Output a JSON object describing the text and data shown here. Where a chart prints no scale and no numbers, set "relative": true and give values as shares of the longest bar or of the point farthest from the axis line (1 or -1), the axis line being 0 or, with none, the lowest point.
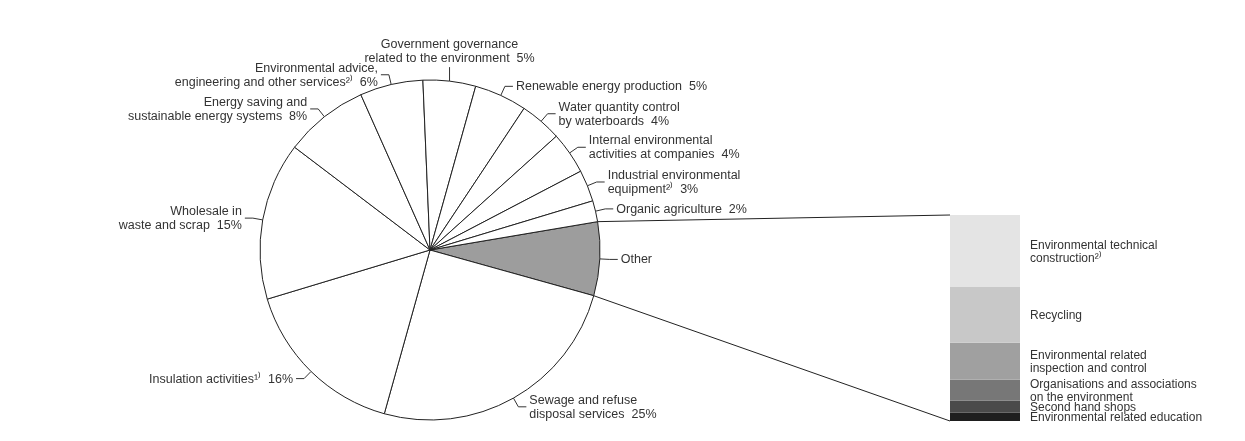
{
  "chart_data": [
    {
      "type": "pie",
      "categories": [
        "Other",
        "Sewage and refuse\ndisposal services",
        "Insulation activities¹⁾",
        "Wholesale in\nwaste and scrap",
        "Energy saving and\nsustainable energy systems",
        "Environmental advice,\nengineering and other services²⁾",
        "Government governance\nrelated to the environment",
        "Renewable energy production",
        "Water quantity control\nby waterboards",
        "Internal environmental\nactivities at companies",
        "Industrial environmental\nequipment²⁾",
        "Organic agriculture"
      ],
      "values": [
        7,
        25,
        16,
        15,
        8,
        6,
        5,
        5,
        4,
        4,
        3,
        2
      ],
      "value_labels": [
        null,
        "25%",
        "16%",
        "15%",
        "8%",
        "6%",
        "5%",
        "5%",
        "4%",
        "4%",
        "3%",
        "2%"
      ],
      "colors": [
        "#9d9d9d",
        "#ffffff",
        "#ffffff",
        "#ffffff",
        "#ffffff",
        "#ffffff",
        "#ffffff",
        "#ffffff",
        "#ffffff",
        "#ffffff",
        "#ffffff",
        "#ffffff"
      ]
    },
    {
      "type": "bar",
      "stacked": true,
      "relative": true,
      "categories": [
        null
      ],
      "series": [
        {
          "name": "Environmental related education",
          "color": "#1e1e1e",
          "values": [
            0.04
          ]
        },
        {
          "name": "Second hand shops",
          "color": "#4a4a4a",
          "values": [
            0.06
          ]
        },
        {
          "name": "Organisations and associations\non the environment",
          "color": "#777777",
          "values": [
            0.1
          ]
        },
        {
          "name": "Environmental related\ninspection and control",
          "color": "#a0a0a0",
          "values": [
            0.18
          ]
        },
        {
          "name": "Recycling",
          "color": "#c8c8c8",
          "values": [
            0.27
          ]
        },
        {
          "name": "Environmental technical\nconstruction²⁾",
          "color": "#e4e4e4",
          "values": [
            0.35
          ]
        }
      ]
    }
  ]
}
